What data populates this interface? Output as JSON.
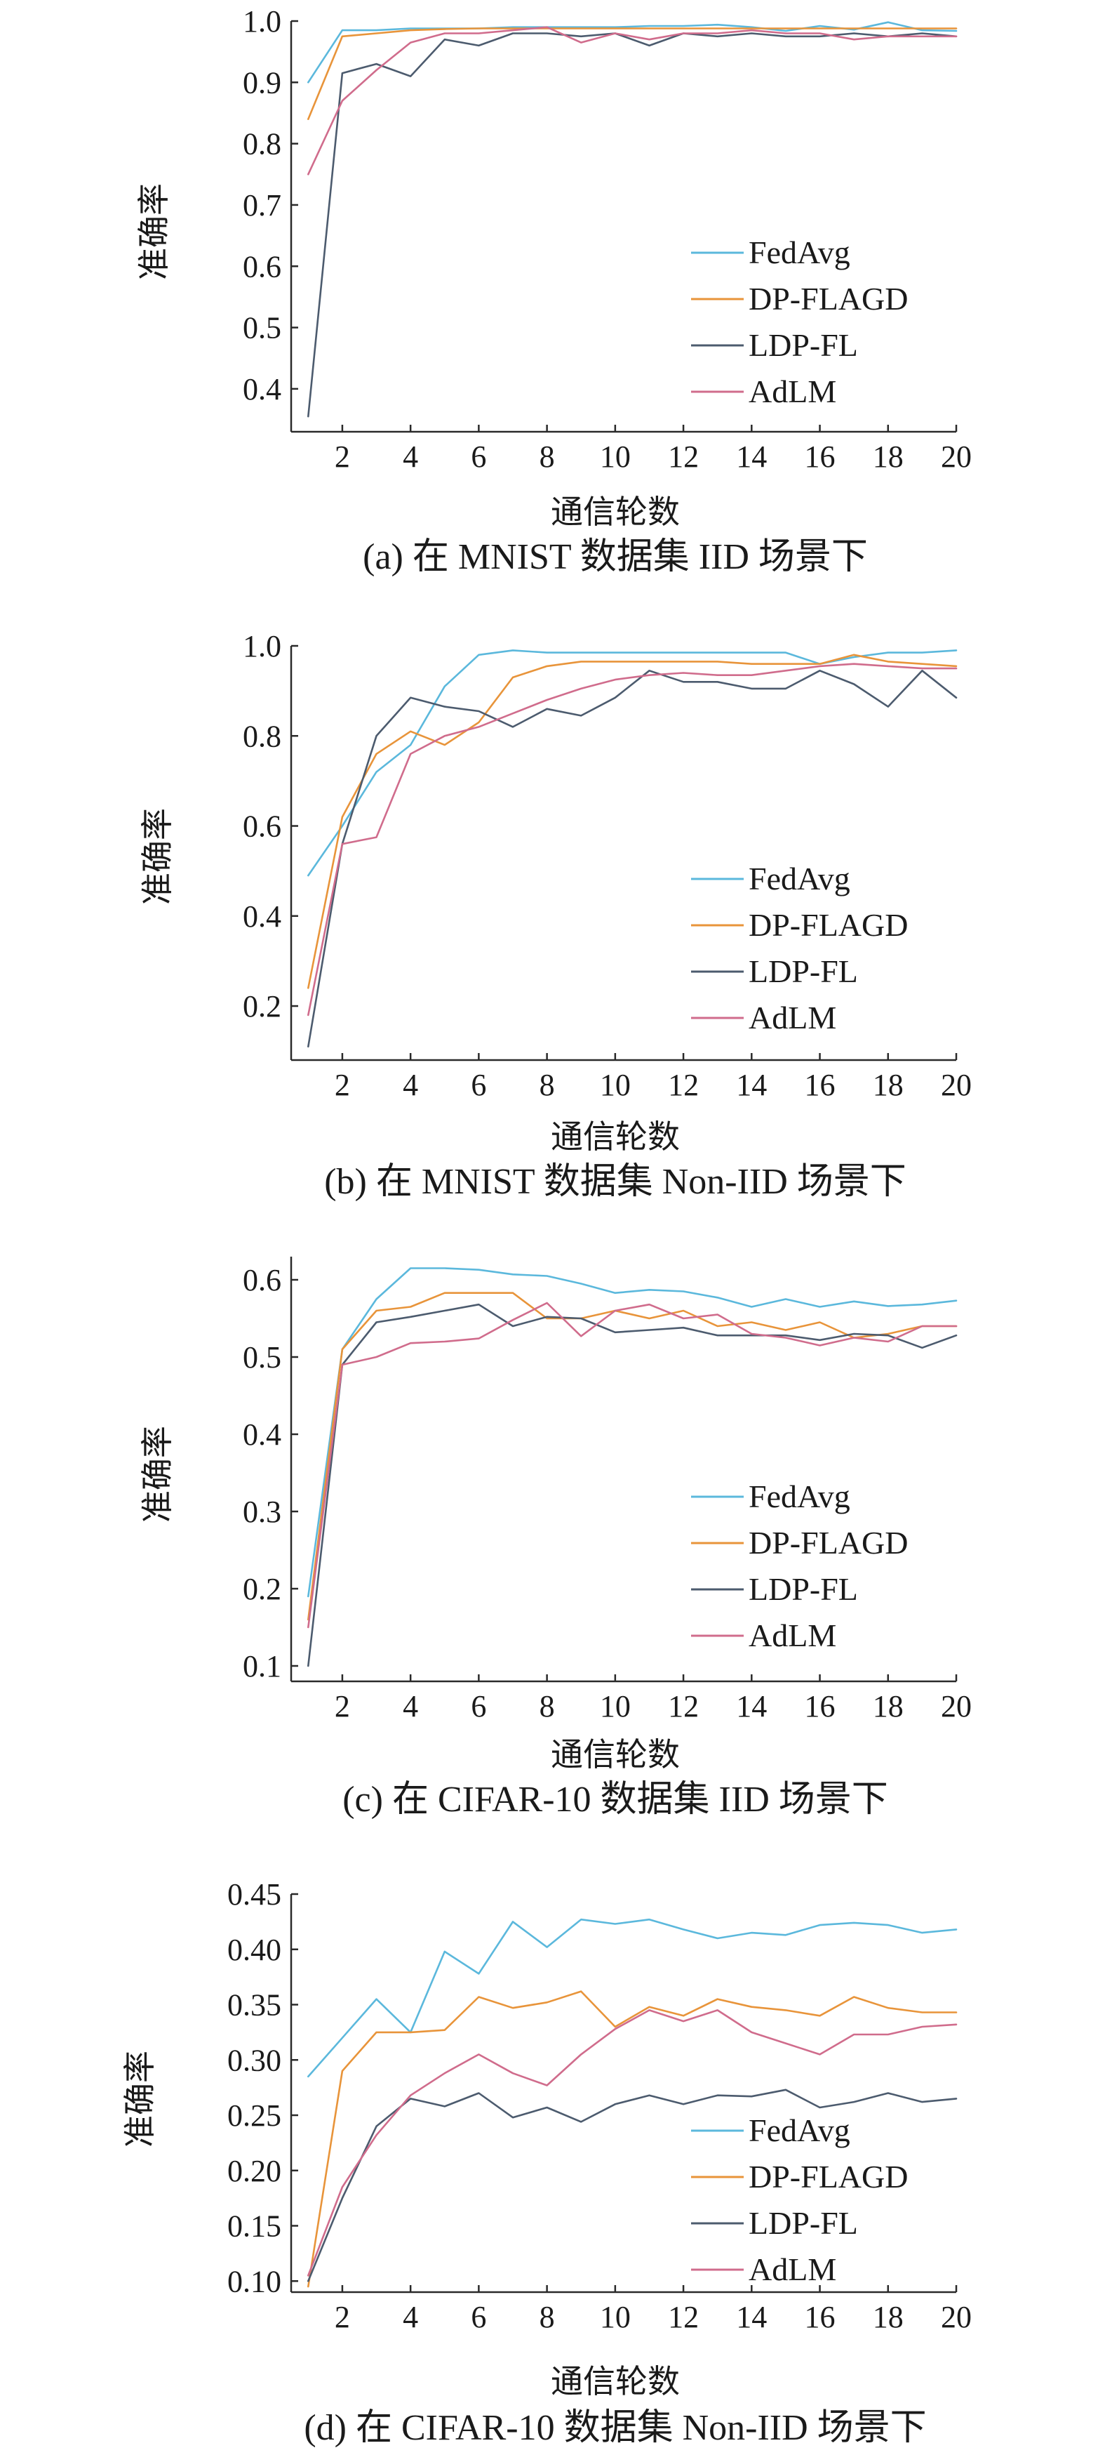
{
  "colors": {
    "FedAvg": "#5bb8dc",
    "DP-FLAGD": "#e8943a",
    "LDP-FL": "#4c5b6e",
    "AdLM": "#d06c8c"
  },
  "chart_data": [
    {
      "type": "line",
      "caption": "(a) 在 MNIST 数据集 IID 场景下",
      "xlabel": "通信轮数",
      "ylabel": "准确率",
      "xlim": [
        0.5,
        20
      ],
      "ylim": [
        0.33,
        1.0
      ],
      "xticks": [
        2,
        4,
        6,
        8,
        10,
        12,
        14,
        16,
        18,
        20
      ],
      "xtick_labels": [
        "2",
        "4",
        "6",
        "8",
        "10",
        "12",
        "14",
        "16",
        "18",
        "20"
      ],
      "yticks": [
        0.4,
        0.5,
        0.6,
        0.7,
        0.8,
        0.9,
        1.0
      ],
      "ytick_labels": [
        "0.4",
        "0.5",
        "0.6",
        "0.7",
        "0.8",
        "0.9",
        "1.0"
      ],
      "legend_position": "lower-right",
      "x": [
        1,
        2,
        3,
        4,
        5,
        6,
        7,
        8,
        9,
        10,
        11,
        12,
        13,
        14,
        15,
        16,
        17,
        18,
        19,
        20
      ],
      "series": [
        {
          "name": "FedAvg",
          "values": [
            0.9,
            0.985,
            0.985,
            0.988,
            0.988,
            0.988,
            0.99,
            0.99,
            0.99,
            0.99,
            0.992,
            0.992,
            0.994,
            0.99,
            0.984,
            0.992,
            0.986,
            0.998,
            0.985,
            0.984
          ]
        },
        {
          "name": "DP-FLAGD",
          "values": [
            0.84,
            0.975,
            0.98,
            0.985,
            0.987,
            0.988,
            0.988,
            0.988,
            0.988,
            0.988,
            0.988,
            0.988,
            0.988,
            0.988,
            0.988,
            0.988,
            0.988,
            0.988,
            0.988,
            0.988
          ]
        },
        {
          "name": "LDP-FL",
          "values": [
            0.355,
            0.915,
            0.93,
            0.91,
            0.97,
            0.96,
            0.98,
            0.98,
            0.975,
            0.98,
            0.96,
            0.98,
            0.975,
            0.98,
            0.975,
            0.975,
            0.98,
            0.975,
            0.98,
            0.975
          ]
        },
        {
          "name": "AdLM",
          "values": [
            0.75,
            0.87,
            0.92,
            0.965,
            0.98,
            0.98,
            0.985,
            0.99,
            0.965,
            0.98,
            0.97,
            0.98,
            0.98,
            0.985,
            0.98,
            0.98,
            0.97,
            0.975,
            0.975,
            0.975
          ]
        }
      ]
    },
    {
      "type": "line",
      "caption": "(b)  在 MNIST 数据集 Non-IID 场景下",
      "xlabel": "通信轮数",
      "ylabel": "准确率",
      "xlim": [
        0.5,
        20
      ],
      "ylim": [
        0.08,
        1.0
      ],
      "xticks": [
        2,
        4,
        6,
        8,
        10,
        12,
        14,
        16,
        18,
        20
      ],
      "xtick_labels": [
        "2",
        "4",
        "6",
        "8",
        "10",
        "12",
        "14",
        "16",
        "18",
        "20"
      ],
      "yticks": [
        0.2,
        0.4,
        0.6,
        0.8,
        1.0
      ],
      "ytick_labels": [
        "0.2",
        "0.4",
        "0.6",
        "0.8",
        "1.0"
      ],
      "legend_position": "lower-right",
      "x": [
        1,
        2,
        3,
        4,
        5,
        6,
        7,
        8,
        9,
        10,
        11,
        12,
        13,
        14,
        15,
        16,
        17,
        18,
        19,
        20
      ],
      "series": [
        {
          "name": "FedAvg",
          "values": [
            0.49,
            0.6,
            0.72,
            0.78,
            0.91,
            0.98,
            0.99,
            0.985,
            0.985,
            0.985,
            0.985,
            0.985,
            0.985,
            0.985,
            0.985,
            0.96,
            0.975,
            0.985,
            0.985,
            0.99
          ]
        },
        {
          "name": "DP-FLAGD",
          "values": [
            0.24,
            0.62,
            0.76,
            0.81,
            0.78,
            0.83,
            0.93,
            0.955,
            0.965,
            0.965,
            0.965,
            0.965,
            0.965,
            0.96,
            0.96,
            0.96,
            0.98,
            0.965,
            0.96,
            0.955
          ]
        },
        {
          "name": "LDP-FL",
          "values": [
            0.11,
            0.56,
            0.8,
            0.885,
            0.865,
            0.855,
            0.82,
            0.86,
            0.845,
            0.885,
            0.945,
            0.92,
            0.92,
            0.905,
            0.905,
            0.945,
            0.915,
            0.865,
            0.945,
            0.885
          ]
        },
        {
          "name": "AdLM",
          "values": [
            0.18,
            0.56,
            0.575,
            0.76,
            0.8,
            0.82,
            0.85,
            0.88,
            0.905,
            0.925,
            0.935,
            0.94,
            0.935,
            0.935,
            0.945,
            0.955,
            0.96,
            0.955,
            0.95,
            0.95
          ]
        }
      ]
    },
    {
      "type": "line",
      "caption": "(c) 在 CIFAR-10 数据集 IID 场景下",
      "xlabel": "通信轮数",
      "ylabel": "准确率",
      "xlim": [
        0.5,
        20
      ],
      "ylim": [
        0.08,
        0.63
      ],
      "xticks": [
        2,
        4,
        6,
        8,
        10,
        12,
        14,
        16,
        18,
        20
      ],
      "xtick_labels": [
        "2",
        "4",
        "6",
        "8",
        "10",
        "12",
        "14",
        "16",
        "18",
        "20"
      ],
      "yticks": [
        0.1,
        0.2,
        0.3,
        0.4,
        0.5,
        0.6
      ],
      "ytick_labels": [
        "0.1",
        "0.2",
        "0.3",
        "0.4",
        "0.5",
        "0.6"
      ],
      "legend_position": "lower-right",
      "x": [
        1,
        2,
        3,
        4,
        5,
        6,
        7,
        8,
        9,
        10,
        11,
        12,
        13,
        14,
        15,
        16,
        17,
        18,
        19,
        20
      ],
      "series": [
        {
          "name": "FedAvg",
          "values": [
            0.19,
            0.51,
            0.575,
            0.615,
            0.615,
            0.613,
            0.607,
            0.605,
            0.595,
            0.583,
            0.587,
            0.585,
            0.577,
            0.565,
            0.575,
            0.565,
            0.572,
            0.566,
            0.568,
            0.573
          ]
        },
        {
          "name": "DP-FLAGD",
          "values": [
            0.16,
            0.51,
            0.56,
            0.565,
            0.583,
            0.583,
            0.583,
            0.55,
            0.55,
            0.56,
            0.55,
            0.56,
            0.54,
            0.545,
            0.535,
            0.545,
            0.525,
            0.53,
            0.54,
            0.54
          ]
        },
        {
          "name": "LDP-FL",
          "values": [
            0.1,
            0.49,
            0.545,
            0.552,
            0.56,
            0.568,
            0.54,
            0.552,
            0.55,
            0.532,
            0.535,
            0.538,
            0.528,
            0.528,
            0.528,
            0.522,
            0.53,
            0.528,
            0.512,
            0.528
          ]
        },
        {
          "name": "AdLM",
          "values": [
            0.15,
            0.49,
            0.5,
            0.518,
            0.52,
            0.524,
            0.548,
            0.57,
            0.527,
            0.56,
            0.568,
            0.55,
            0.555,
            0.53,
            0.525,
            0.515,
            0.525,
            0.52,
            0.54,
            0.54
          ]
        }
      ]
    },
    {
      "type": "line",
      "caption": "(d) 在 CIFAR-10 数据集 Non-IID 场景下",
      "xlabel": "通信轮数",
      "ylabel": "准确率",
      "xlim": [
        0.5,
        20
      ],
      "ylim": [
        0.09,
        0.45
      ],
      "xticks": [
        2,
        4,
        6,
        8,
        10,
        12,
        14,
        16,
        18,
        20
      ],
      "xtick_labels": [
        "2",
        "4",
        "6",
        "8",
        "10",
        "12",
        "14",
        "16",
        "18",
        "20"
      ],
      "yticks": [
        0.1,
        0.15,
        0.2,
        0.25,
        0.3,
        0.35,
        0.4,
        0.45
      ],
      "ytick_labels": [
        "0.10",
        "0.15",
        "0.20",
        "0.25",
        "0.30",
        "0.35",
        "0.40",
        "0.45"
      ],
      "legend_position": "lower-right",
      "x": [
        1,
        2,
        3,
        4,
        5,
        6,
        7,
        8,
        9,
        10,
        11,
        12,
        13,
        14,
        15,
        16,
        17,
        18,
        19,
        20
      ],
      "series": [
        {
          "name": "FedAvg",
          "values": [
            0.285,
            0.32,
            0.355,
            0.325,
            0.398,
            0.378,
            0.425,
            0.402,
            0.427,
            0.423,
            0.427,
            0.418,
            0.41,
            0.415,
            0.413,
            0.422,
            0.424,
            0.422,
            0.415,
            0.418
          ]
        },
        {
          "name": "DP-FLAGD",
          "values": [
            0.095,
            0.29,
            0.325,
            0.325,
            0.327,
            0.357,
            0.347,
            0.352,
            0.362,
            0.33,
            0.348,
            0.34,
            0.355,
            0.348,
            0.345,
            0.34,
            0.357,
            0.347,
            0.343,
            0.343
          ]
        },
        {
          "name": "LDP-FL",
          "values": [
            0.1,
            0.175,
            0.24,
            0.265,
            0.258,
            0.27,
            0.248,
            0.257,
            0.244,
            0.26,
            0.268,
            0.26,
            0.268,
            0.267,
            0.273,
            0.257,
            0.262,
            0.27,
            0.262,
            0.265
          ]
        },
        {
          "name": "AdLM",
          "values": [
            0.105,
            0.185,
            0.232,
            0.268,
            0.288,
            0.305,
            0.288,
            0.277,
            0.305,
            0.328,
            0.345,
            0.335,
            0.345,
            0.325,
            0.315,
            0.305,
            0.323,
            0.323,
            0.33,
            0.332
          ]
        }
      ]
    }
  ]
}
